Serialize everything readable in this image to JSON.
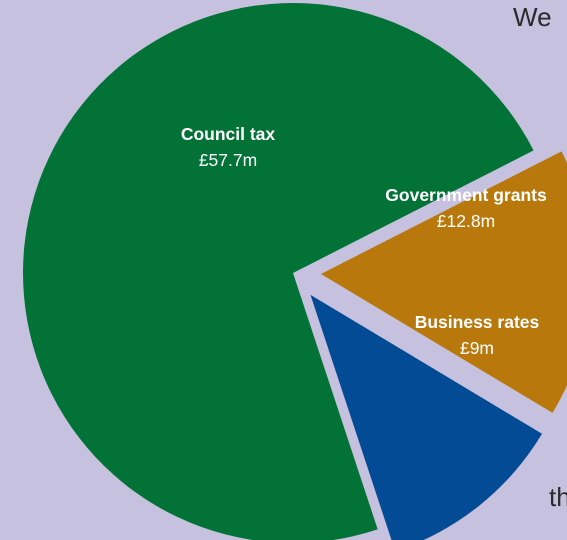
{
  "background_text": {
    "top": "We",
    "bottom": "th"
  },
  "chart_data": {
    "type": "pie",
    "title": "",
    "unit": "£m",
    "slices": [
      {
        "name": "Council tax",
        "value": 57.7,
        "label": "£57.7m",
        "color": "#037236",
        "exploded": false
      },
      {
        "name": "Government grants",
        "value": 12.8,
        "label": "£12.8m",
        "color": "#b9780c",
        "exploded": true
      },
      {
        "name": "Business rates",
        "value": 9,
        "label": "£9m",
        "color": "#034b94",
        "exploded": true
      }
    ],
    "start_angle_deg": 0,
    "direction": "clockwise",
    "legend": "none"
  },
  "colors": {
    "background": "#c6c1de",
    "label_text": "#ffffff"
  }
}
